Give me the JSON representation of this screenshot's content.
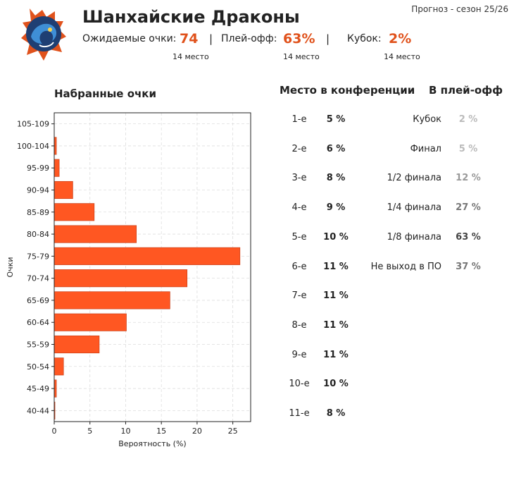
{
  "header": {
    "team_name": "Шанхайские Драконы",
    "season": "Прогноз - сезон 25/26",
    "stats": [
      {
        "label": "Ожидаемые очки:",
        "value": "74",
        "rank": "14 место"
      },
      {
        "label": "Плей-офф:",
        "value": "63%",
        "rank": "14 место"
      },
      {
        "label": "Кубок:",
        "value": "2%",
        "rank": "14 место"
      }
    ],
    "separator": "|"
  },
  "colors": {
    "accent": "#e0521c",
    "bar": "#ff5722",
    "dark": "#222222",
    "muted": "#666666",
    "faint": "#bbbbbb"
  },
  "conference": {
    "title": "Место в конференции",
    "rows": [
      {
        "place": "1-е",
        "pct": "5 %"
      },
      {
        "place": "2-е",
        "pct": "6 %"
      },
      {
        "place": "3-е",
        "pct": "8 %"
      },
      {
        "place": "4-е",
        "pct": "9 %"
      },
      {
        "place": "5-е",
        "pct": "10 %"
      },
      {
        "place": "6-е",
        "pct": "11 %"
      },
      {
        "place": "7-е",
        "pct": "11 %"
      },
      {
        "place": "8-е",
        "pct": "11 %"
      },
      {
        "place": "9-е",
        "pct": "11 %"
      },
      {
        "place": "10-е",
        "pct": "10 %"
      },
      {
        "place": "11-е",
        "pct": "8 %"
      }
    ]
  },
  "playoffs": {
    "title": "В плей-офф",
    "rows": [
      {
        "stage": "Кубок",
        "pct": "2 %",
        "color": "#bbbbbb"
      },
      {
        "stage": "Финал",
        "pct": "5 %",
        "color": "#bbbbbb"
      },
      {
        "stage": "1/2 финала",
        "pct": "12 %",
        "color": "#999999"
      },
      {
        "stage": "1/4 финала",
        "pct": "27 %",
        "color": "#777777"
      },
      {
        "stage": "1/8 финала",
        "pct": "63 %",
        "color": "#444444"
      },
      {
        "stage": "Не выход в ПО",
        "pct": "37 %",
        "color": "#777777"
      }
    ]
  },
  "chart_data": {
    "type": "bar",
    "orientation": "horizontal",
    "title": "Набранные очки",
    "xlabel": "Вероятность (%)",
    "ylabel": "Очки",
    "categories": [
      "105-109",
      "100-104",
      "95-99",
      "90-94",
      "85-89",
      "80-84",
      "75-79",
      "70-74",
      "65-69",
      "60-64",
      "55-59",
      "50-54",
      "45-49",
      "40-44"
    ],
    "values": [
      0.0,
      0.3,
      0.7,
      2.6,
      5.6,
      11.5,
      26.0,
      18.6,
      16.2,
      10.1,
      6.3,
      1.3,
      0.3,
      0.1
    ],
    "xlim": [
      0,
      27.5
    ],
    "xticks": [
      0,
      5,
      10,
      15,
      20,
      25
    ],
    "grid": true
  }
}
